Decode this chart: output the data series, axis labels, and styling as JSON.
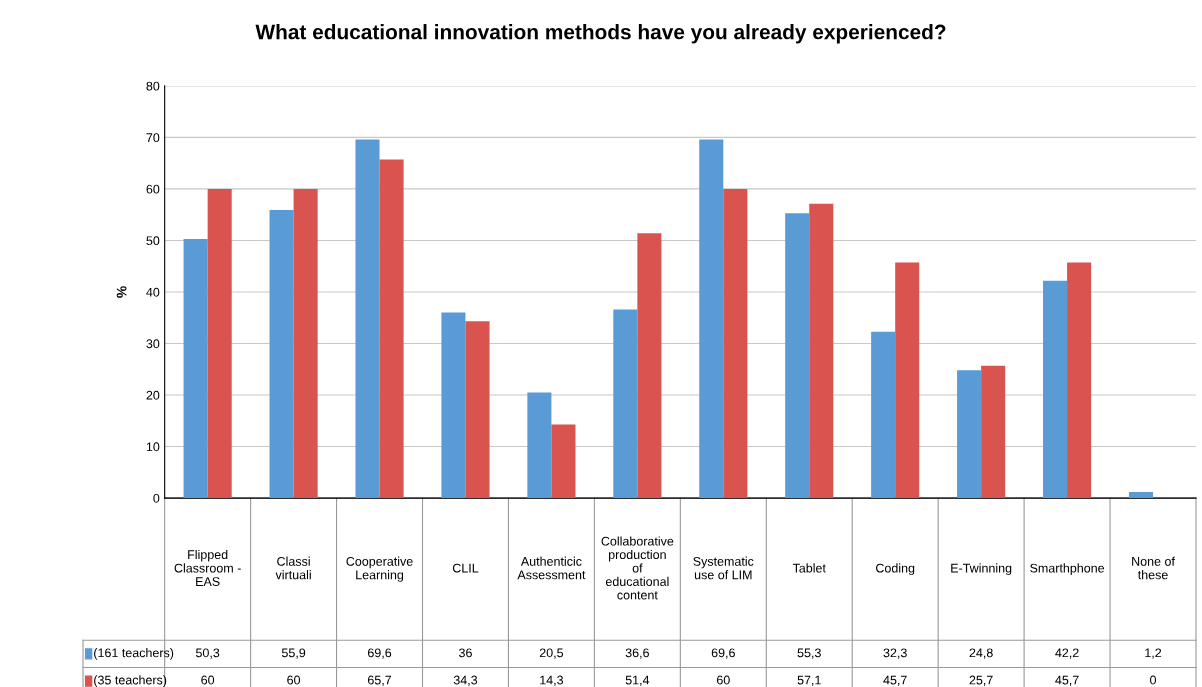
{
  "chart_data": {
    "type": "bar",
    "title": "What educational innovation methods have you already experienced?",
    "ylabel": "%",
    "categories": [
      "Flipped\nClassroom -\nEAS",
      "Classi\nvirtuali",
      "Cooperative\nLearning",
      "CLIL",
      "Authenticic\nAssessment",
      "Collaborative\nproduction\nof\neducational\ncontent",
      "Systematic\nuse of LIM",
      "Tablet",
      "Coding",
      "E-Twinning",
      "Smarthphone",
      "None of\nthese"
    ],
    "series": [
      {
        "name": "(161 teachers)",
        "color": "#5b9bd5",
        "values": [
          50.3,
          55.9,
          69.6,
          36,
          20.5,
          36.6,
          69.6,
          55.3,
          32.3,
          24.8,
          42.2,
          1.2
        ],
        "value_labels": [
          "50,3",
          "55,9",
          "69,6",
          "36",
          "20,5",
          "36,6",
          "69,6",
          "55,3",
          "32,3",
          "24,8",
          "42,2",
          "1,2"
        ]
      },
      {
        "name": "(35 teachers)",
        "color": "#d9534f",
        "values": [
          60,
          60,
          65.7,
          34.3,
          14.3,
          51.4,
          60,
          57.1,
          45.7,
          25.7,
          45.7,
          0
        ],
        "value_labels": [
          "60",
          "60",
          "65,7",
          "34,3",
          "14,3",
          "51,4",
          "60",
          "57,1",
          "45,7",
          "25,7",
          "45,7",
          "0"
        ]
      }
    ],
    "ylim": [
      0,
      80
    ],
    "yticks": [
      0,
      10,
      20,
      30,
      40,
      50,
      60,
      70,
      80
    ],
    "grid": "y",
    "legend": "bottom left"
  }
}
